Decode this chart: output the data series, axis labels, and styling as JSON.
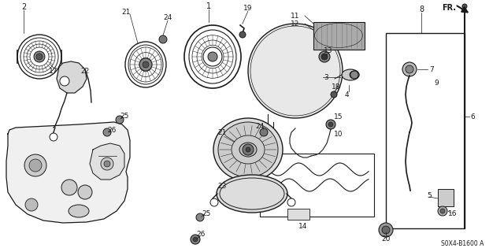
{
  "bg_color": "#ffffff",
  "line_color": "#1a1a1a",
  "diagram_id": "S0X4-B1600 A",
  "fig_width": 6.4,
  "fig_height": 3.2,
  "dpi": 100
}
